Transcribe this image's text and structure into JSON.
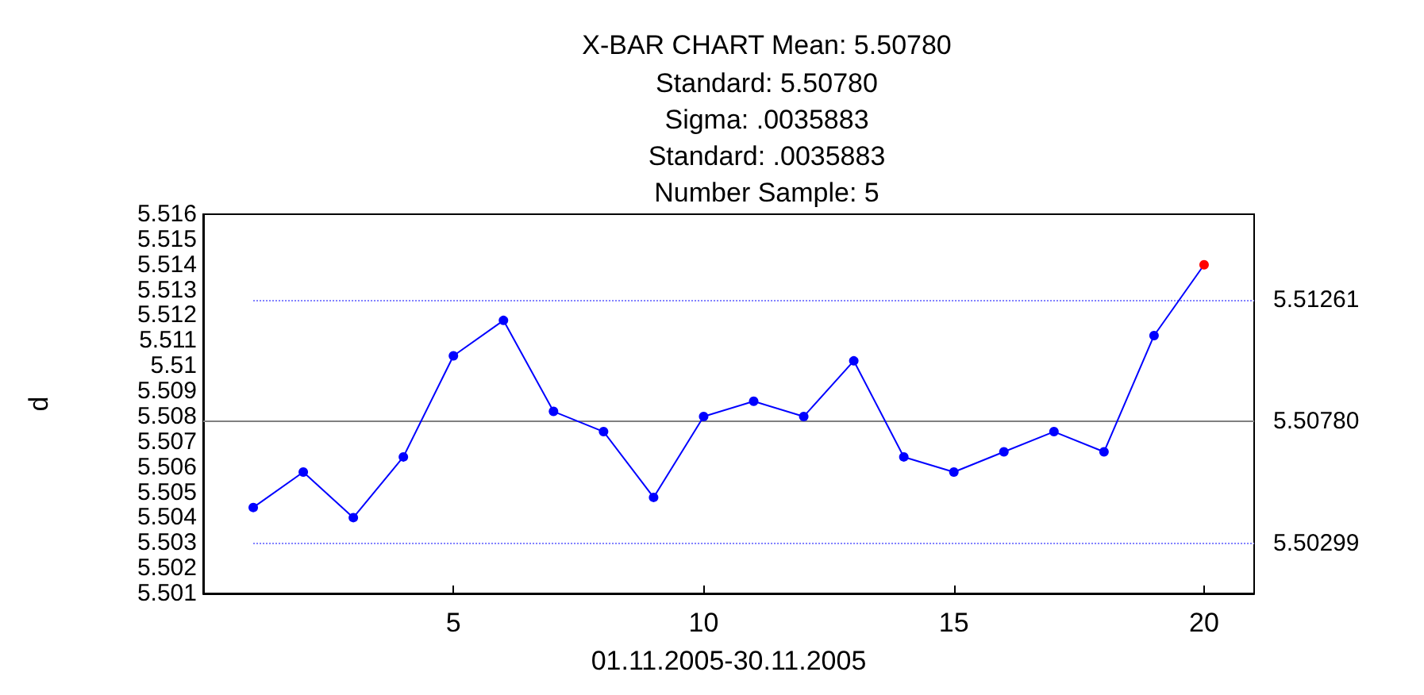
{
  "chart_data": {
    "type": "line",
    "title": "X-BAR CHART Mean: 5.50780",
    "subtitle": "Standard: 5.50780\nSigma: .0035883\nStandard: .0035883\nNumber Sample: 5",
    "xlabel": "01.11.2005-30.11.2005",
    "ylabel": "d",
    "x": [
      1,
      2,
      3,
      4,
      5,
      6,
      7,
      8,
      9,
      10,
      11,
      12,
      13,
      14,
      15,
      16,
      17,
      18,
      19,
      20
    ],
    "series": [
      {
        "color": "#0000ff",
        "colors": [
          "#0000ff",
          "#0000ff",
          "#0000ff",
          "#0000ff",
          "#0000ff",
          "#0000ff",
          "#0000ff",
          "#0000ff",
          "#0000ff",
          "#0000ff",
          "#0000ff",
          "#0000ff",
          "#0000ff",
          "#0000ff",
          "#0000ff",
          "#0000ff",
          "#0000ff",
          "#0000ff",
          "#0000ff",
          "#ff0000"
        ],
        "values": [
          5.5044,
          5.5058,
          5.504,
          5.5064,
          5.5104,
          5.5118,
          5.5082,
          5.5074,
          5.5048,
          5.508,
          5.5086,
          5.508,
          5.5102,
          5.5064,
          5.5058,
          5.5066,
          5.5074,
          5.5066,
          5.5112,
          5.514
        ]
      }
    ],
    "xlim": [
      0,
      21
    ],
    "xticks": [
      5,
      10,
      15,
      20
    ],
    "ylim": [
      5.501,
      5.516
    ],
    "yticks": [
      5.501,
      5.502,
      5.503,
      5.504,
      5.505,
      5.506,
      5.507,
      5.508,
      5.509,
      5.51,
      5.511,
      5.512,
      5.513,
      5.514,
      5.515,
      5.516
    ],
    "ref_lines": [
      {
        "axis": "y",
        "value": 5.51261,
        "label": "5.51261",
        "color": "#8080ff",
        "line_style": "dotted"
      },
      {
        "axis": "y",
        "value": 5.5078,
        "label": "5.50780",
        "color": "#808080",
        "line_style": "solid"
      },
      {
        "axis": "y",
        "value": 5.50299,
        "label": "5.50299",
        "color": "#8080ff",
        "line_style": "dotted"
      }
    ],
    "grid": false,
    "marker": "circle",
    "line_style": "solid"
  }
}
